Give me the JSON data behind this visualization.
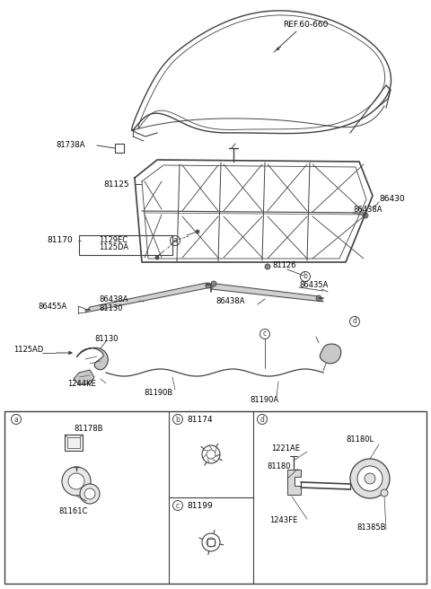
{
  "bg_color": "#ffffff",
  "fig_width": 4.8,
  "fig_height": 6.56,
  "dpi": 100,
  "lc": "#404040",
  "fs": 6.0,
  "labels": {
    "ref": "REF.60-660",
    "81738A": "81738A",
    "81125": "81125",
    "86430": "86430",
    "86438A": "86438A",
    "81170": "81170",
    "1129EC": "1129EC",
    "1125DA": "1125DA",
    "81126": "81126",
    "86455A": "86455A",
    "81130": "81130",
    "86435A": "86435A",
    "1125AD": "1125AD",
    "1244KE": "1244KE",
    "81190B": "81190B",
    "81190A": "81190A",
    "81178B": "81178B",
    "81161C": "81161C",
    "81174": "81174",
    "81199": "81199",
    "1221AE": "1221AE",
    "81180": "81180",
    "81180L": "81180L",
    "1243FE": "1243FE",
    "81385B": "81385B"
  }
}
